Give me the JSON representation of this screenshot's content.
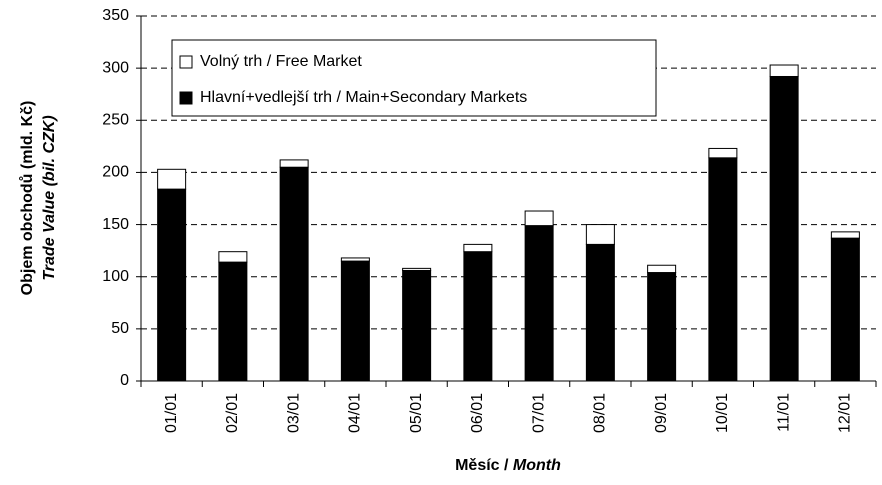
{
  "chart_data": {
    "type": "stacked_bar",
    "ylabel": [
      "Objem obchodů (mld. Kč)",
      "Trade Value (bil. CZK)"
    ],
    "xlabel": [
      "Měsíc / ",
      "Month"
    ],
    "categories": [
      "01/01",
      "02/01",
      "03/01",
      "04/01",
      "05/01",
      "06/01",
      "07/01",
      "08/01",
      "09/01",
      "10/01",
      "11/01",
      "12/01"
    ],
    "series": [
      {
        "name": "Hlavní+vedlejší trh / Main+Secondary Markets",
        "color": "#000000",
        "values": [
          184,
          114,
          205,
          115,
          106,
          124,
          149,
          131,
          104,
          214,
          292,
          137
        ]
      },
      {
        "name": "Volný trh / Free Market",
        "color": "#ffffff",
        "values": [
          19,
          10,
          7,
          3,
          2,
          7,
          14,
          19,
          7,
          9,
          11,
          6
        ]
      }
    ],
    "ylim": [
      0,
      350
    ],
    "yticks": [
      0,
      50,
      100,
      150,
      200,
      250,
      300,
      350
    ],
    "grid": true,
    "legend": "upper left"
  }
}
